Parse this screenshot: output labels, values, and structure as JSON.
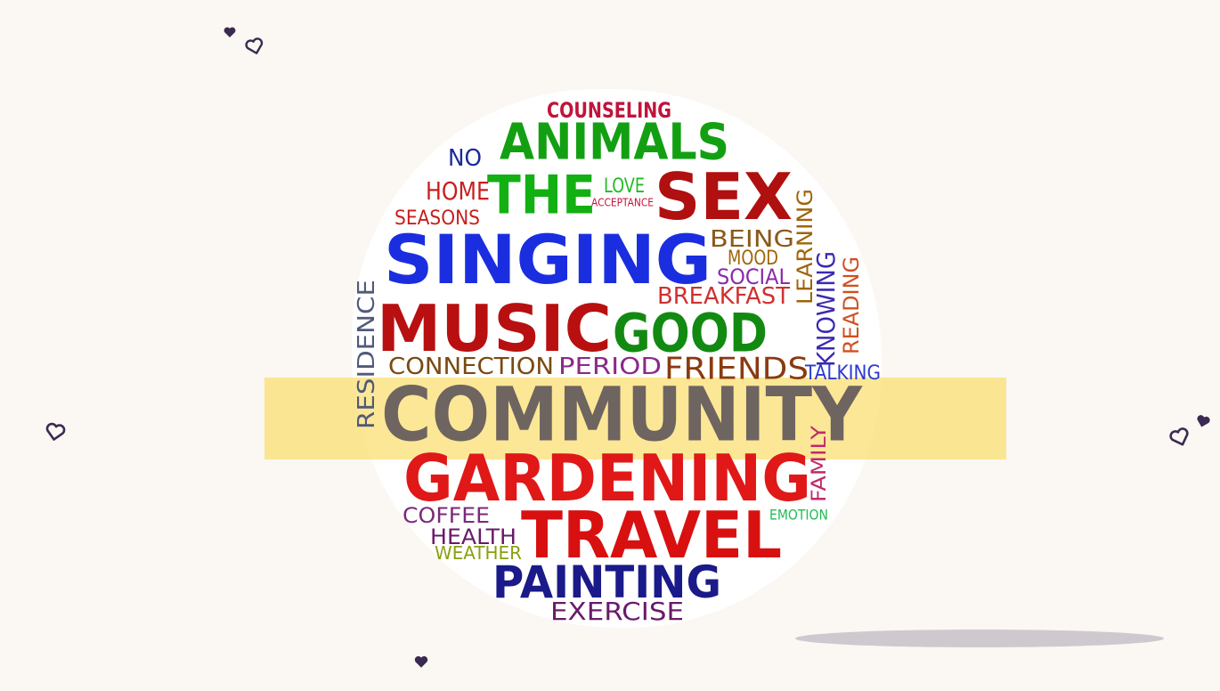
{
  "colors": {
    "background": "#fbf7f2",
    "highlight": "#fade6e",
    "heart": "#3a2a52",
    "shadow": "#cfc9cf"
  },
  "decorations": {
    "hearts": [
      "heart-icon",
      "heart-outline-icon"
    ]
  },
  "word_cloud": {
    "words": [
      {
        "text": "COUNSELING",
        "color": "#c0143c"
      },
      {
        "text": "ANIMALS",
        "color": "#12a012"
      },
      {
        "text": "NO",
        "color": "#1a2a9a"
      },
      {
        "text": "THE",
        "color": "#12b012"
      },
      {
        "text": "LOVE",
        "color": "#22bb22"
      },
      {
        "text": "ACCEPTANCE",
        "color": "#c0143c"
      },
      {
        "text": "SEX",
        "color": "#b01010"
      },
      {
        "text": "HOME",
        "color": "#c81e1e"
      },
      {
        "text": "SEASONS",
        "color": "#c81e1e"
      },
      {
        "text": "SINGING",
        "color": "#1a2ee0"
      },
      {
        "text": "BEING",
        "color": "#8a5a1a"
      },
      {
        "text": "MOOD",
        "color": "#a0640a"
      },
      {
        "text": "SOCIAL",
        "color": "#8a2aaa"
      },
      {
        "text": "BREAKFAST",
        "color": "#d03030"
      },
      {
        "text": "LEARNING",
        "color": "#a0640a"
      },
      {
        "text": "KNOWING",
        "color": "#3a2ab0"
      },
      {
        "text": "READING",
        "color": "#d05020"
      },
      {
        "text": "RESIDENCE",
        "color": "#505a7a"
      },
      {
        "text": "MUSIC",
        "color": "#b81010"
      },
      {
        "text": "GOOD",
        "color": "#128a12"
      },
      {
        "text": "CONNECTION",
        "color": "#7a4a12"
      },
      {
        "text": "PERIOD",
        "color": "#8a2a8a"
      },
      {
        "text": "FRIENDS",
        "color": "#8a3a10"
      },
      {
        "text": "TALKING",
        "color": "#2a3ad0"
      },
      {
        "text": "COMMUNITY",
        "color": "#6e6460"
      },
      {
        "text": "FAMILY",
        "color": "#c02a6a"
      },
      {
        "text": "GARDENING",
        "color": "#e01818"
      },
      {
        "text": "EMOTION",
        "color": "#22bb55"
      },
      {
        "text": "COFFEE",
        "color": "#7a2a7a"
      },
      {
        "text": "TRAVEL",
        "color": "#d81010"
      },
      {
        "text": "HEALTH",
        "color": "#6a1a6a"
      },
      {
        "text": "WEATHER",
        "color": "#8aa010"
      },
      {
        "text": "PAINTING",
        "color": "#1a1a8a"
      },
      {
        "text": "EXERCISE",
        "color": "#6a1a6a"
      }
    ]
  }
}
